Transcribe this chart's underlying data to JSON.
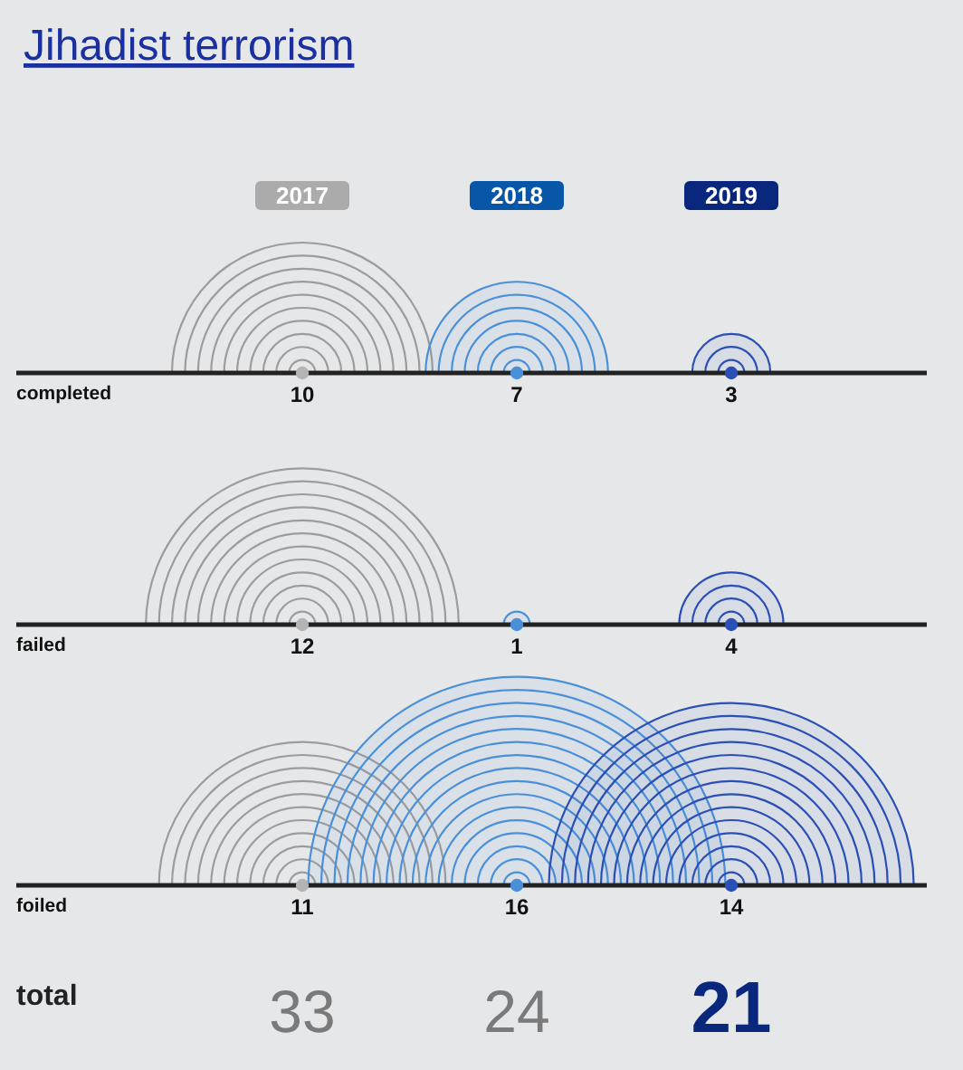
{
  "chart_data": {
    "type": "other",
    "title": "Jihadist terrorism",
    "categories": [
      "2017",
      "2018",
      "2019"
    ],
    "series": [
      {
        "name": "completed",
        "colors": [
          "#9c9c9c",
          "#4a90d9",
          "#2a4fb5"
        ],
        "values": [
          10,
          7,
          3
        ]
      },
      {
        "name": "failed",
        "colors": [
          "#9c9c9c",
          "#4a90d9",
          "#2a4fb5"
        ],
        "values": [
          12,
          1,
          4
        ]
      },
      {
        "name": "foiled",
        "colors": [
          "#9c9c9c",
          "#4a90d9",
          "#2a4fb5"
        ],
        "values": [
          11,
          16,
          14
        ]
      }
    ],
    "data_labels": true,
    "totals": [
      "33",
      "24",
      "21"
    ],
    "annotations": [
      "total"
    ]
  }
}
